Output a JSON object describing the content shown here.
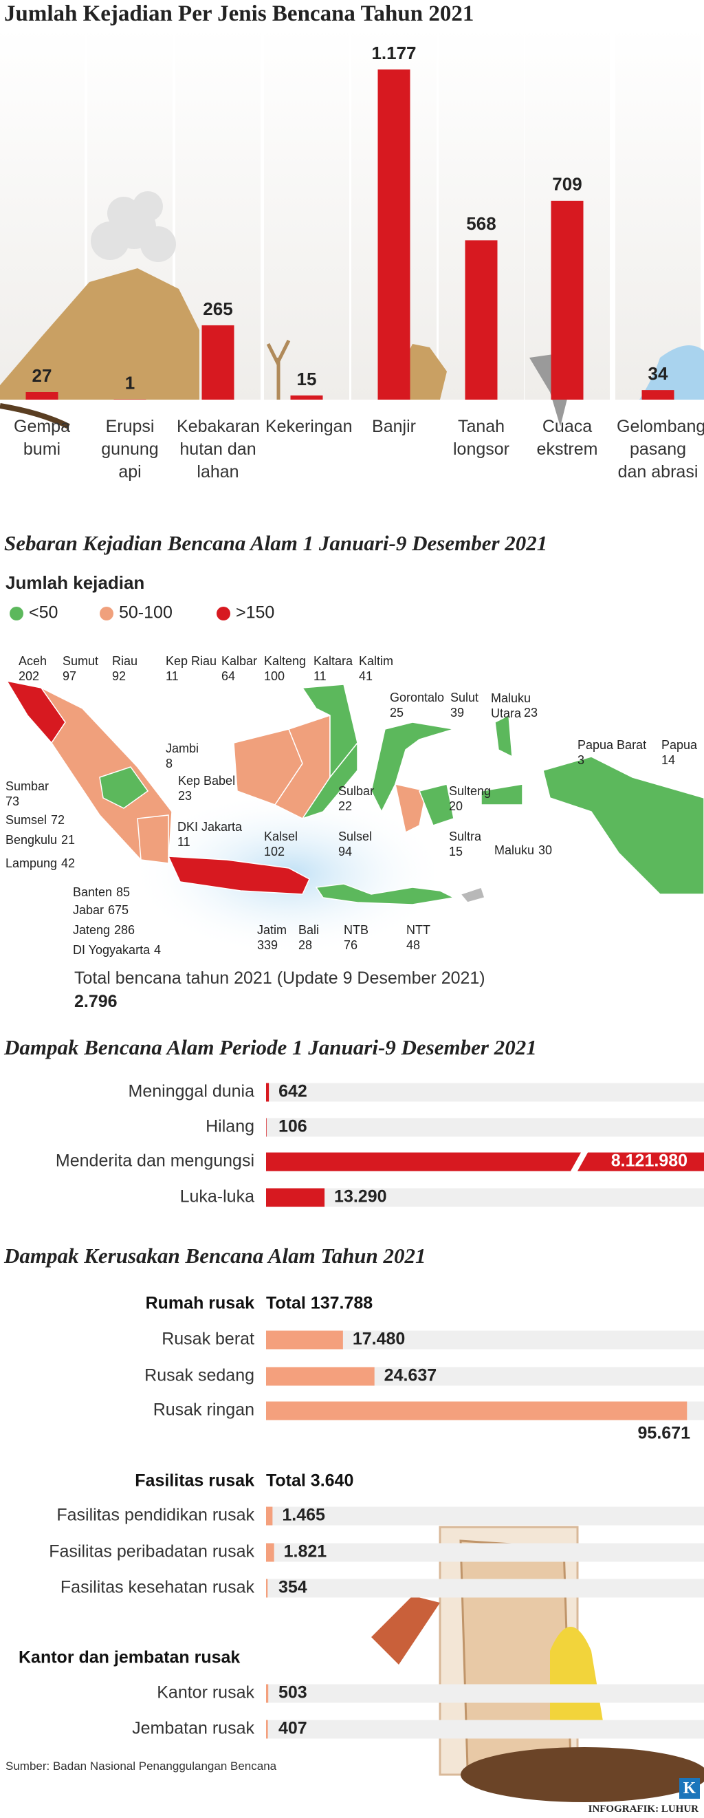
{
  "chart_data": [
    {
      "type": "bar",
      "title": "Jumlah Kejadian Per Jenis Bencana Tahun 2021",
      "categories": [
        "Gempa bumi",
        "Erupsi gunung api",
        "Kebakaran hutan dan lahan",
        "Kekeringan",
        "Banjir",
        "Tanah longsor",
        "Cuaca ekstrem",
        "Gelombang pasang dan abrasi"
      ],
      "values": [
        27,
        1,
        265,
        15,
        1177,
        568,
        709,
        34
      ],
      "value_labels": [
        "27",
        "1",
        "265",
        "15",
        "1.177",
        "568",
        "709",
        "34"
      ],
      "color": "#d71920"
    },
    {
      "type": "map",
      "title": "Sebaran Kejadian Bencana Alam 1 Januari-9 Desember 2021",
      "legend_title": "Jumlah kejadian",
      "legend": [
        {
          "label": "<50",
          "color": "#5cb85c"
        },
        {
          "label": "50-100",
          "color": "#f0a07c"
        },
        {
          "label": ">150",
          "color": "#d71920"
        }
      ],
      "regions": [
        {
          "name": "Aceh",
          "value": 202
        },
        {
          "name": "Sumut",
          "value": 97
        },
        {
          "name": "Riau",
          "value": 92
        },
        {
          "name": "Kep Riau",
          "value": 11
        },
        {
          "name": "Kalbar",
          "value": 64
        },
        {
          "name": "Kalteng",
          "value": 100
        },
        {
          "name": "Kaltara",
          "value": 11
        },
        {
          "name": "Kaltim",
          "value": 41
        },
        {
          "name": "Gorontalo",
          "value": 25
        },
        {
          "name": "Sulut",
          "value": 39
        },
        {
          "name": "Maluku Utara",
          "value": 23
        },
        {
          "name": "Papua Barat",
          "value": 3
        },
        {
          "name": "Papua",
          "value": 14
        },
        {
          "name": "Jambi",
          "value": 8
        },
        {
          "name": "Kep Babel",
          "value": 23
        },
        {
          "name": "Sumbar",
          "value": 73
        },
        {
          "name": "Sumsel",
          "value": 72
        },
        {
          "name": "Bengkulu",
          "value": 21
        },
        {
          "name": "Lampung",
          "value": 42
        },
        {
          "name": "DKI Jakarta",
          "value": 11
        },
        {
          "name": "Kalsel",
          "value": 102
        },
        {
          "name": "Sulbar",
          "value": 22
        },
        {
          "name": "Sulsel",
          "value": 94
        },
        {
          "name": "Sulteng",
          "value": 20
        },
        {
          "name": "Sultra",
          "value": 15
        },
        {
          "name": "Maluku",
          "value": 30
        },
        {
          "name": "Banten",
          "value": 85
        },
        {
          "name": "Jabar",
          "value": 675
        },
        {
          "name": "Jateng",
          "value": 286
        },
        {
          "name": "DI Yogyakarta",
          "value": 4
        },
        {
          "name": "Jatim",
          "value": 339
        },
        {
          "name": "Bali",
          "value": 28
        },
        {
          "name": "NTB",
          "value": 76
        },
        {
          "name": "NTT",
          "value": 48
        }
      ],
      "total": {
        "text": "Total bencana tahun 2021 (Update 9 Desember 2021)",
        "value": 2796,
        "label": "2.796"
      }
    },
    {
      "type": "hbar",
      "title": "Dampak Bencana Alam Periode 1 Januari-9 Desember 2021",
      "categories": [
        "Meninggal dunia",
        "Hilang",
        "Menderita dan mengungsi",
        "Luka-luka"
      ],
      "values": [
        642,
        106,
        8121980,
        13290
      ],
      "value_labels": [
        "642",
        "106",
        "8.121.980",
        "13.290"
      ],
      "color": "#d71920"
    },
    {
      "type": "grouped-hbar",
      "title": "Dampak Kerusakan Bencana Alam Tahun 2021",
      "color": "#f4a07d",
      "groups": [
        {
          "name": "Rumah rusak",
          "total": 137788,
          "total_label": "Total 137.788",
          "categories": [
            "Rusak berat",
            "Rusak sedang",
            "Rusak ringan"
          ],
          "values": [
            17480,
            24637,
            95671
          ],
          "value_labels": [
            "17.480",
            "24.637",
            "95.671"
          ]
        },
        {
          "name": "Fasilitas rusak",
          "total": 3640,
          "total_label": "Total 3.640",
          "categories": [
            "Fasilitas pendidikan rusak",
            "Fasilitas peribadatan rusak",
            "Fasilitas kesehatan rusak"
          ],
          "values": [
            1465,
            1821,
            354
          ],
          "value_labels": [
            "1.465",
            "1.821",
            "354"
          ]
        },
        {
          "name": "Kantor dan jembatan rusak",
          "categories": [
            "Kantor rusak",
            "Jembatan rusak"
          ],
          "values": [
            503,
            407
          ],
          "value_labels": [
            "503",
            "407"
          ]
        }
      ]
    }
  ],
  "source": "Sumber: Badan Nasional Penanggulangan Bencana",
  "credit": "INFOGRAFIK: LUHUR",
  "logo": "K"
}
